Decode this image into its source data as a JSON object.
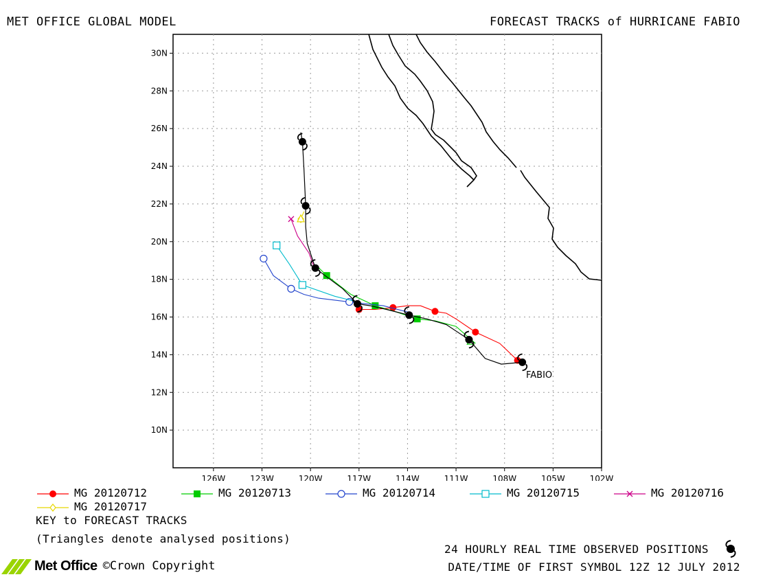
{
  "header": {
    "left_title": "MET OFFICE GLOBAL MODEL",
    "right_title": "FORECAST TRACKS of HURRICANE FABIO"
  },
  "map": {
    "lon_range": [
      -128.5,
      -102
    ],
    "lat_range": [
      8,
      31
    ],
    "lon_ticks": [
      -126,
      -123,
      -120,
      -117,
      -114,
      -111,
      -108,
      -105,
      -102
    ],
    "lon_tick_labels": [
      "126W",
      "123W",
      "120W",
      "117W",
      "114W",
      "111W",
      "108W",
      "105W",
      "102W"
    ],
    "lat_ticks": [
      10,
      12,
      14,
      16,
      18,
      20,
      22,
      24,
      26,
      28,
      30
    ],
    "lat_tick_labels": [
      "10N",
      "12N",
      "14N",
      "16N",
      "18N",
      "20N",
      "22N",
      "24N",
      "26N",
      "28N",
      "30N"
    ],
    "grid": true,
    "storm_label": "FABIO"
  },
  "chart_data": {
    "type": "scatter",
    "title": "FORECAST TRACKS of HURRICANE FABIO",
    "xlim": [
      -128.5,
      -102
    ],
    "ylim": [
      8,
      31
    ],
    "observed": {
      "name": "24 HOURLY REAL TIME OBSERVED POSITIONS",
      "color": "#000000",
      "symbol_positions": [
        [
          -106.9,
          13.6
        ],
        [
          -110.2,
          14.8
        ],
        [
          -113.9,
          16.1
        ],
        [
          -117.1,
          16.7
        ],
        [
          -119.7,
          18.6
        ],
        [
          -120.3,
          21.9
        ],
        [
          -120.5,
          25.3
        ]
      ],
      "track": [
        [
          -106.9,
          13.6
        ],
        [
          -108.2,
          13.5
        ],
        [
          -109.2,
          13.8
        ],
        [
          -110.2,
          14.8
        ],
        [
          -111.6,
          15.6
        ],
        [
          -112.8,
          15.9
        ],
        [
          -113.9,
          16.1
        ],
        [
          -115.3,
          16.4
        ],
        [
          -116.3,
          16.6
        ],
        [
          -117.1,
          16.7
        ],
        [
          -118.0,
          17.5
        ],
        [
          -119.1,
          18.2
        ],
        [
          -119.7,
          18.6
        ],
        [
          -120.2,
          19.9
        ],
        [
          -120.3,
          20.8
        ],
        [
          -120.3,
          21.9
        ],
        [
          -120.4,
          23.8
        ],
        [
          -120.5,
          25.3
        ],
        [
          -120.6,
          25.8
        ]
      ]
    },
    "series": [
      {
        "name": "MG 20120712",
        "color": "#ff0000",
        "marker": "filled-circle",
        "points": [
          [
            -107.2,
            13.7
          ],
          [
            -109.8,
            15.2
          ],
          [
            -112.3,
            16.3
          ],
          [
            -114.9,
            16.5
          ],
          [
            -117.0,
            16.4
          ]
        ],
        "track": [
          [
            -107.2,
            13.7
          ],
          [
            -108.3,
            14.6
          ],
          [
            -109.8,
            15.2
          ],
          [
            -111.0,
            15.9
          ],
          [
            -111.6,
            16.2
          ],
          [
            -112.3,
            16.3
          ],
          [
            -113.2,
            16.6
          ],
          [
            -114.0,
            16.6
          ],
          [
            -114.9,
            16.5
          ],
          [
            -116.0,
            16.4
          ],
          [
            -117.0,
            16.4
          ]
        ]
      },
      {
        "name": "MG 20120713",
        "color": "#00cc00",
        "marker": "filled-square",
        "points": [
          [
            -113.4,
            15.9
          ],
          [
            -116.0,
            16.6
          ],
          [
            -119.0,
            18.2
          ]
        ],
        "track": [
          [
            -109.8,
            14.6
          ],
          [
            -111.0,
            15.5
          ],
          [
            -112.3,
            15.8
          ],
          [
            -113.4,
            15.9
          ],
          [
            -114.8,
            16.3
          ],
          [
            -116.0,
            16.6
          ],
          [
            -117.5,
            17.2
          ],
          [
            -119.0,
            18.2
          ],
          [
            -119.6,
            18.7
          ]
        ]
      },
      {
        "name": "MG 20120714",
        "color": "#2244cc",
        "marker": "open-circle",
        "points": [
          [
            -117.6,
            16.8
          ],
          [
            -121.2,
            17.5
          ],
          [
            -122.9,
            19.1
          ]
        ],
        "track": [
          [
            -113.7,
            16.2
          ],
          [
            -115.5,
            16.6
          ],
          [
            -117.6,
            16.8
          ],
          [
            -119.5,
            17.0
          ],
          [
            -120.4,
            17.2
          ],
          [
            -121.2,
            17.5
          ],
          [
            -122.3,
            18.2
          ],
          [
            -122.9,
            19.1
          ]
        ]
      },
      {
        "name": "MG 20120715",
        "color": "#00bbcc",
        "marker": "open-square",
        "points": [
          [
            -120.5,
            17.7
          ],
          [
            -122.1,
            19.8
          ]
        ],
        "track": [
          [
            -117.1,
            16.8
          ],
          [
            -118.5,
            17.1
          ],
          [
            -120.5,
            17.7
          ],
          [
            -121.3,
            18.8
          ],
          [
            -122.1,
            19.8
          ]
        ]
      },
      {
        "name": "MG 20120716",
        "color": "#cc0088",
        "marker": "cross",
        "points": [
          [
            -121.2,
            21.2
          ]
        ],
        "track": [
          [
            -119.8,
            18.7
          ],
          [
            -120.1,
            19.4
          ],
          [
            -120.8,
            20.3
          ],
          [
            -121.2,
            21.2
          ]
        ]
      },
      {
        "name": "MG 20120717",
        "color": "#e8d800",
        "marker": "open-diamond",
        "points": [
          [
            -120.6,
            21.2
          ]
        ],
        "track": [
          [
            -120.4,
            21.6
          ],
          [
            -120.6,
            21.2
          ]
        ]
      }
    ],
    "analysed_triangles": [
      {
        "color": "#00cc00",
        "position": [
          -110.1,
          14.7
        ]
      },
      {
        "color": "#e8d800",
        "position": [
          -120.6,
          21.2
        ]
      }
    ]
  },
  "legend": {
    "items": [
      {
        "label": "MG 20120712"
      },
      {
        "label": "MG 20120713"
      },
      {
        "label": "MG 20120714"
      },
      {
        "label": "MG 20120715"
      },
      {
        "label": "MG 20120716"
      },
      {
        "label": "MG 20120717"
      }
    ],
    "key_title": "KEY to FORECAST TRACKS",
    "key_note": "(Triangles denote analysed positions)"
  },
  "footer": {
    "observed_text": "24 HOURLY REAL TIME OBSERVED POSITIONS",
    "datetime_text": "DATE/TIME OF FIRST SYMBOL 12Z 12 JULY 2012",
    "brand": "Met Office",
    "copyright": "©Crown Copyright"
  }
}
